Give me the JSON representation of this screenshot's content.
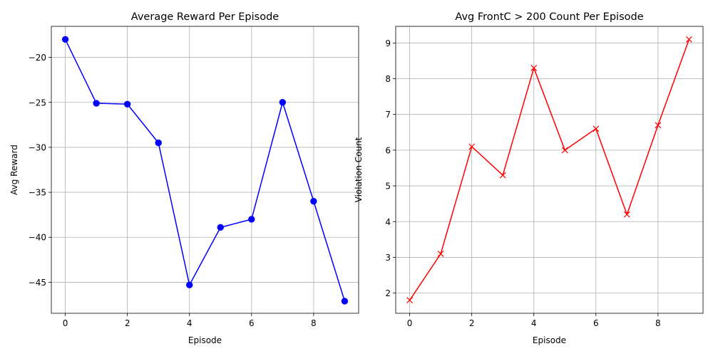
{
  "chart_data": [
    {
      "type": "line",
      "title": "Average Reward Per Episode",
      "xlabel": "Episode",
      "ylabel": "Avg Reward",
      "x": [
        0,
        1,
        2,
        3,
        4,
        5,
        6,
        7,
        8,
        9
      ],
      "xlim": [
        -0.45,
        9.45
      ],
      "ylim": [
        -48.45,
        -16.55
      ],
      "xticks": [
        0,
        2,
        4,
        6,
        8
      ],
      "yticks": [
        -45,
        -40,
        -35,
        -30,
        -25,
        -20
      ],
      "xtick_labels": [
        "0",
        "2",
        "4",
        "6",
        "8"
      ],
      "ytick_labels": [
        "−45",
        "−40",
        "−35",
        "−30",
        "−25",
        "−20"
      ],
      "grid": true,
      "series": [
        {
          "values": [
            -18.0,
            -25.1,
            -25.2,
            -29.5,
            -45.3,
            -38.9,
            -38.0,
            -25.0,
            -36.0,
            -47.1
          ],
          "color": "#0000ff",
          "marker": "circle"
        }
      ]
    },
    {
      "type": "line",
      "title": "Avg FrontC > 200 Count Per Episode",
      "xlabel": "Episode",
      "ylabel": "Violation Count",
      "x": [
        0,
        1,
        2,
        3,
        4,
        5,
        6,
        7,
        8,
        9
      ],
      "xlim": [
        -0.45,
        9.45
      ],
      "ylim": [
        1.435,
        9.465
      ],
      "xticks": [
        0,
        2,
        4,
        6,
        8
      ],
      "yticks": [
        2,
        3,
        4,
        5,
        6,
        7,
        8,
        9
      ],
      "xtick_labels": [
        "0",
        "2",
        "4",
        "6",
        "8"
      ],
      "ytick_labels": [
        "2",
        "3",
        "4",
        "5",
        "6",
        "7",
        "8",
        "9"
      ],
      "grid": true,
      "series": [
        {
          "values": [
            1.8,
            3.1,
            6.1,
            5.3,
            8.3,
            6.0,
            6.6,
            4.2,
            6.7,
            9.1
          ],
          "color": "#ff0000",
          "marker": "x"
        }
      ]
    }
  ]
}
